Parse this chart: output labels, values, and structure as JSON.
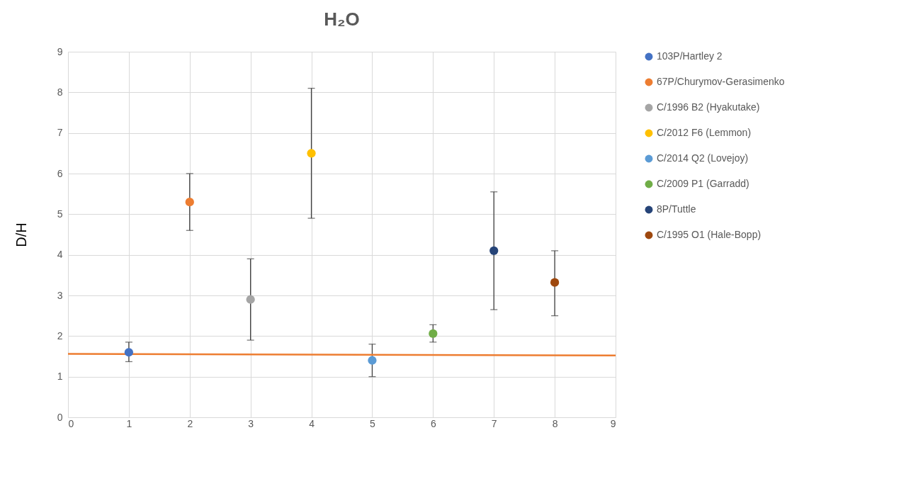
{
  "chart_data": {
    "type": "scatter",
    "title": "H₂O",
    "ylabel": "D/H",
    "xlim": [
      0,
      9
    ],
    "ylim": [
      0,
      9
    ],
    "xticks": [
      0,
      1,
      2,
      3,
      4,
      5,
      6,
      7,
      8,
      9
    ],
    "yticks": [
      0,
      1,
      2,
      3,
      4,
      5,
      6,
      7,
      8,
      9
    ],
    "grid": true,
    "legend": "right",
    "marker": "circle",
    "series": [
      {
        "name": "103P/Hartley 2",
        "color": "#4472c4",
        "x": [
          1
        ],
        "values": [
          1.6
        ],
        "errors": [
          [
            1.37,
            1.85
          ]
        ]
      },
      {
        "name": "67P/Churymov-Gerasimenko",
        "color": "#ed7d31",
        "x": [
          2
        ],
        "values": [
          5.3
        ],
        "errors": [
          [
            4.6,
            6.0
          ]
        ]
      },
      {
        "name": "C/1996 B2 (Hyakutake)",
        "color": "#a5a5a5",
        "x": [
          3
        ],
        "values": [
          2.9
        ],
        "errors": [
          [
            1.9,
            3.9
          ]
        ]
      },
      {
        "name": "C/2012 F6 (Lemmon)",
        "color": "#ffc000",
        "x": [
          4
        ],
        "values": [
          6.5
        ],
        "errors": [
          [
            4.9,
            8.1
          ]
        ]
      },
      {
        "name": "C/2014 Q2 (Lovejoy)",
        "color": "#5b9bd5",
        "x": [
          5
        ],
        "values": [
          1.4
        ],
        "errors": [
          [
            1.0,
            1.8
          ]
        ]
      },
      {
        "name": "C/2009 P1 (Garradd)",
        "color": "#70ad47",
        "x": [
          6
        ],
        "values": [
          2.06
        ],
        "errors": [
          [
            1.85,
            2.28
          ]
        ]
      },
      {
        "name": "8P/Tuttle",
        "color": "#264478",
        "x": [
          7
        ],
        "values": [
          4.1
        ],
        "errors": [
          [
            2.65,
            5.55
          ]
        ]
      },
      {
        "name": "C/1995 O1 (Hale-Bopp)",
        "color": "#9e480e",
        "x": [
          8
        ],
        "values": [
          3.32
        ],
        "errors": [
          [
            2.5,
            4.1
          ]
        ]
      },
      {
        "type": "line",
        "color": "#ed7d31",
        "marker": "none",
        "x": [
          0,
          9
        ],
        "values": [
          1.56,
          1.52
        ]
      }
    ]
  }
}
